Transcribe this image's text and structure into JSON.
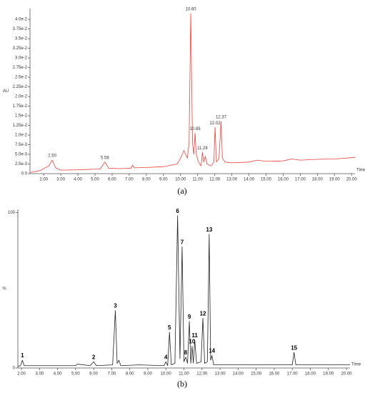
{
  "chart_data": [
    {
      "type": "line",
      "caption": "(a)",
      "ylabel": "AU",
      "xlabel": "Time",
      "color": "#e8403a",
      "xlim": [
        1.2,
        20.2
      ],
      "ylim": [
        0,
        0.0428
      ],
      "xticks": [
        {
          "value": 2,
          "label": "2.00"
        },
        {
          "value": 3,
          "label": "3.00"
        },
        {
          "value": 4,
          "label": "4.00"
        },
        {
          "value": 5,
          "label": "5.00"
        },
        {
          "value": 6,
          "label": "6.00"
        },
        {
          "value": 7,
          "label": "7.00"
        },
        {
          "value": 8,
          "label": "8.00"
        },
        {
          "value": 9,
          "label": "9.00"
        },
        {
          "value": 10,
          "label": "10.00"
        },
        {
          "value": 11,
          "label": "11.00"
        },
        {
          "value": 12,
          "label": "12.00"
        },
        {
          "value": 13,
          "label": "13.00"
        },
        {
          "value": 14,
          "label": "14.00"
        },
        {
          "value": 15,
          "label": "15.00"
        },
        {
          "value": 16,
          "label": "16.00"
        },
        {
          "value": 17,
          "label": "17.00"
        },
        {
          "value": 18,
          "label": "18.00"
        },
        {
          "value": 19,
          "label": "19.00"
        },
        {
          "value": 20,
          "label": "20.00"
        }
      ],
      "yticks": [
        {
          "value": 0,
          "label": "0.0"
        },
        {
          "value": 0.0025,
          "label": "2.5e-3"
        },
        {
          "value": 0.005,
          "label": "5.0e-3"
        },
        {
          "value": 0.0075,
          "label": "7.5e-3"
        },
        {
          "value": 0.01,
          "label": "1.0e-2"
        },
        {
          "value": 0.0125,
          "label": "1.25e-2"
        },
        {
          "value": 0.015,
          "label": "1.5e-2"
        },
        {
          "value": 0.0175,
          "label": "1.75e-2"
        },
        {
          "value": 0.02,
          "label": "2.0e-2"
        },
        {
          "value": 0.0225,
          "label": "2.25e-2"
        },
        {
          "value": 0.025,
          "label": "2.5e-2"
        },
        {
          "value": 0.0275,
          "label": "2.75e-2"
        },
        {
          "value": 0.03,
          "label": "3.0e-2"
        },
        {
          "value": 0.0325,
          "label": "3.25e-2"
        },
        {
          "value": 0.035,
          "label": "3.5e-2"
        },
        {
          "value": 0.0375,
          "label": "3.75e-2"
        },
        {
          "value": 0.04,
          "label": "4.0e-2"
        }
      ],
      "x": [
        1.2,
        1.8,
        2.3,
        2.5,
        2.7,
        3.0,
        4.0,
        5.3,
        5.58,
        5.8,
        6.5,
        7.1,
        7.2,
        7.3,
        8.0,
        9.0,
        9.8,
        10.0,
        10.2,
        10.4,
        10.5,
        10.6,
        10.7,
        10.78,
        10.85,
        10.92,
        11.05,
        11.2,
        11.28,
        11.36,
        11.45,
        11.55,
        11.8,
        11.95,
        12.02,
        12.1,
        12.25,
        12.37,
        12.45,
        12.6,
        13.0,
        14.0,
        14.5,
        15.0,
        16.0,
        16.5,
        17.0,
        18.0,
        19.0,
        20.2
      ],
      "values": [
        0.0003,
        0.0008,
        0.002,
        0.0035,
        0.0015,
        0.0009,
        0.001,
        0.0012,
        0.003,
        0.0014,
        0.0013,
        0.0014,
        0.0022,
        0.0015,
        0.0016,
        0.0018,
        0.0025,
        0.004,
        0.006,
        0.004,
        0.008,
        0.0415,
        0.008,
        0.005,
        0.0105,
        0.005,
        0.003,
        0.002,
        0.0055,
        0.003,
        0.0045,
        0.0025,
        0.002,
        0.003,
        0.012,
        0.003,
        0.004,
        0.0135,
        0.004,
        0.003,
        0.0028,
        0.003,
        0.0035,
        0.0032,
        0.0033,
        0.0038,
        0.0035,
        0.0037,
        0.0038,
        0.0042
      ],
      "annotations": [
        {
          "text": "2.50",
          "x": 2.5,
          "y": 0.0035
        },
        {
          "text": "5.58",
          "x": 5.58,
          "y": 0.003
        },
        {
          "text": "10.60",
          "x": 10.6,
          "y": 0.0415
        },
        {
          "text": "10.85",
          "x": 10.85,
          "y": 0.0105
        },
        {
          "text": "11.28",
          "x": 11.28,
          "y": 0.0055
        },
        {
          "text": "12.02",
          "x": 12.02,
          "y": 0.012
        },
        {
          "text": "12.37",
          "x": 12.37,
          "y": 0.0135
        }
      ]
    },
    {
      "type": "line",
      "caption": "(b)",
      "ylabel": "%",
      "xlabel": "Time",
      "color": "#222222",
      "bold_annotations": true,
      "xlim": [
        1.8,
        20.2
      ],
      "ylim": [
        0,
        102
      ],
      "xticks": [
        {
          "value": 2,
          "label": "2.00"
        },
        {
          "value": 3,
          "label": "3.00"
        },
        {
          "value": 4,
          "label": "4.00"
        },
        {
          "value": 5,
          "label": "5.00"
        },
        {
          "value": 6,
          "label": "6.00"
        },
        {
          "value": 7,
          "label": "7.00"
        },
        {
          "value": 8,
          "label": "8.00"
        },
        {
          "value": 9,
          "label": "9.00"
        },
        {
          "value": 10,
          "label": "10.00"
        },
        {
          "value": 11,
          "label": "11.00"
        },
        {
          "value": 12,
          "label": "12.00"
        },
        {
          "value": 13,
          "label": "13.00"
        },
        {
          "value": 14,
          "label": "14.00"
        },
        {
          "value": 15,
          "label": "15.00"
        },
        {
          "value": 16,
          "label": "16.00"
        },
        {
          "value": 17,
          "label": "17.00"
        },
        {
          "value": 18,
          "label": "18.00"
        },
        {
          "value": 19,
          "label": "19.00"
        },
        {
          "value": 20,
          "label": "20.00"
        }
      ],
      "yticks": [
        0,
        100
      ],
      "x": [
        1.8,
        1.95,
        2.05,
        2.15,
        2.3,
        3.0,
        4.5,
        5.0,
        5.1,
        5.8,
        6.0,
        6.15,
        7.05,
        7.2,
        7.3,
        7.4,
        7.5,
        8.5,
        9.9,
        10.0,
        10.1,
        10.2,
        10.3,
        10.5,
        10.65,
        10.78,
        10.9,
        11.0,
        11.1,
        11.2,
        11.3,
        11.38,
        11.45,
        11.52,
        11.6,
        11.7,
        11.95,
        12.05,
        12.15,
        12.3,
        12.4,
        12.48,
        12.55,
        12.65,
        13.0,
        15.0,
        17.0,
        17.1,
        17.2,
        18.0,
        20.2
      ],
      "values": [
        1,
        1.5,
        5,
        1.5,
        1.5,
        1.5,
        1.5,
        1.5,
        2.5,
        1.5,
        4,
        1.5,
        2,
        37,
        3,
        5,
        1.5,
        2,
        1.5,
        4,
        1.5,
        23,
        2,
        3,
        98,
        6,
        78,
        4,
        7,
        3,
        30,
        3,
        14,
        3,
        18,
        3,
        4,
        32,
        3,
        4,
        86,
        5,
        8,
        2,
        2,
        2,
        2,
        10,
        2,
        2,
        2
      ],
      "annotations": [
        {
          "text": "1",
          "x": 2.05,
          "y": 5
        },
        {
          "text": "2",
          "x": 6.0,
          "y": 4
        },
        {
          "text": "3",
          "x": 7.2,
          "y": 37
        },
        {
          "text": "4",
          "x": 10.0,
          "y": 4
        },
        {
          "text": "5",
          "x": 10.2,
          "y": 23
        },
        {
          "text": "6",
          "x": 10.65,
          "y": 98
        },
        {
          "text": "7",
          "x": 10.9,
          "y": 78
        },
        {
          "text": "8",
          "x": 11.1,
          "y": 7
        },
        {
          "text": "9",
          "x": 11.3,
          "y": 30
        },
        {
          "text": "10",
          "x": 11.45,
          "y": 14
        },
        {
          "text": "11",
          "x": 11.6,
          "y": 18
        },
        {
          "text": "12",
          "x": 12.05,
          "y": 32
        },
        {
          "text": "13",
          "x": 12.4,
          "y": 86
        },
        {
          "text": "14",
          "x": 12.55,
          "y": 8
        },
        {
          "text": "15",
          "x": 17.1,
          "y": 10
        }
      ]
    }
  ]
}
